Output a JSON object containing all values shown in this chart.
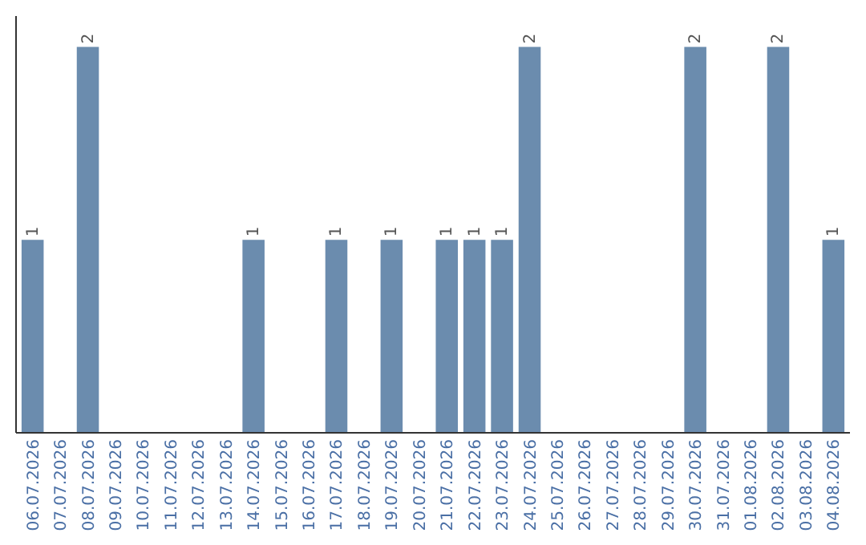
{
  "chart_data": {
    "type": "bar",
    "categories": [
      "06.07.2026",
      "07.07.2026",
      "08.07.2026",
      "09.07.2026",
      "10.07.2026",
      "11.07.2026",
      "12.07.2026",
      "13.07.2026",
      "14.07.2026",
      "15.07.2026",
      "16.07.2026",
      "17.07.2026",
      "18.07.2026",
      "19.07.2026",
      "20.07.2026",
      "21.07.2026",
      "22.07.2026",
      "23.07.2026",
      "24.07.2026",
      "25.07.2026",
      "26.07.2026",
      "27.07.2026",
      "28.07.2026",
      "29.07.2026",
      "30.07.2026",
      "31.07.2026",
      "01.08.2026",
      "02.08.2026",
      "03.08.2026",
      "04.08.2026"
    ],
    "values": [
      1,
      0,
      2,
      0,
      0,
      0,
      0,
      0,
      1,
      0,
      0,
      1,
      0,
      1,
      0,
      1,
      1,
      1,
      2,
      0,
      0,
      0,
      0,
      0,
      2,
      0,
      0,
      2,
      0,
      1
    ],
    "value_labels": [
      "1",
      null,
      "2",
      null,
      null,
      null,
      null,
      null,
      "1",
      null,
      null,
      "1",
      null,
      "1",
      null,
      "1",
      "1",
      "1",
      "2",
      null,
      null,
      null,
      null,
      null,
      "2",
      null,
      null,
      "2",
      null,
      "1"
    ],
    "color": "#6b8cae"
  }
}
